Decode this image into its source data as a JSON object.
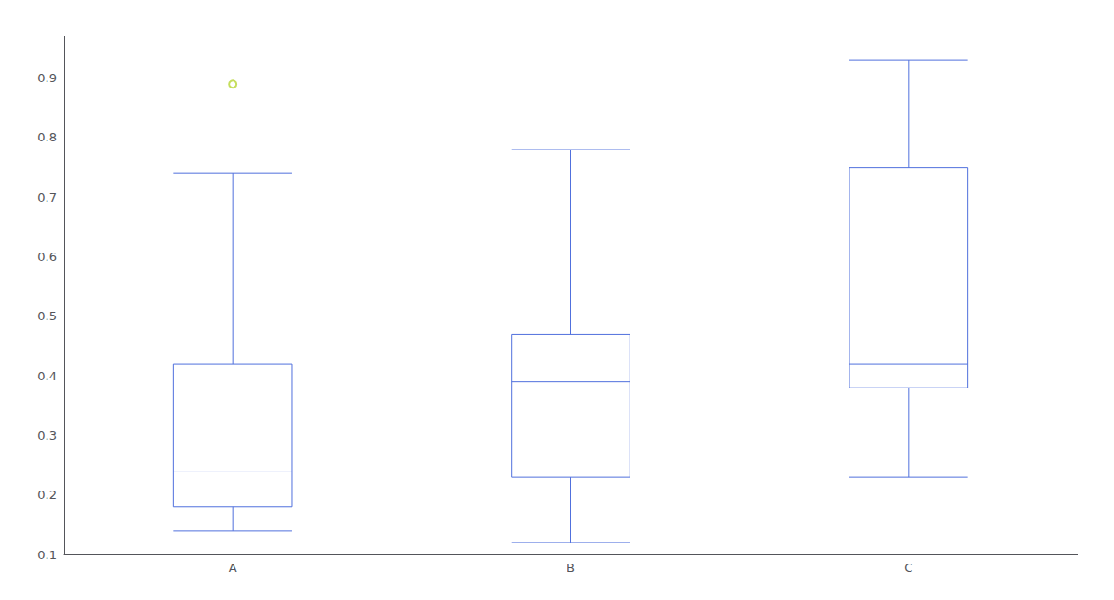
{
  "chart_data": {
    "type": "box",
    "categories": [
      "A",
      "B",
      "C"
    ],
    "values": [
      {
        "whisker_low": 0.14,
        "q1": 0.18,
        "median": 0.24,
        "q3": 0.42,
        "whisker_high": 0.74,
        "outliers": [
          0.89
        ]
      },
      {
        "whisker_low": 0.12,
        "q1": 0.23,
        "median": 0.39,
        "q3": 0.47,
        "whisker_high": 0.78,
        "outliers": []
      },
      {
        "whisker_low": 0.23,
        "q1": 0.38,
        "median": 0.42,
        "q3": 0.75,
        "whisker_high": 0.93,
        "outliers": []
      }
    ],
    "ylim": [
      0.1,
      0.97
    ],
    "yticks": [
      0.1,
      0.2,
      0.3,
      0.4,
      0.5,
      0.6,
      0.7,
      0.8,
      0.9
    ],
    "grid": false
  }
}
